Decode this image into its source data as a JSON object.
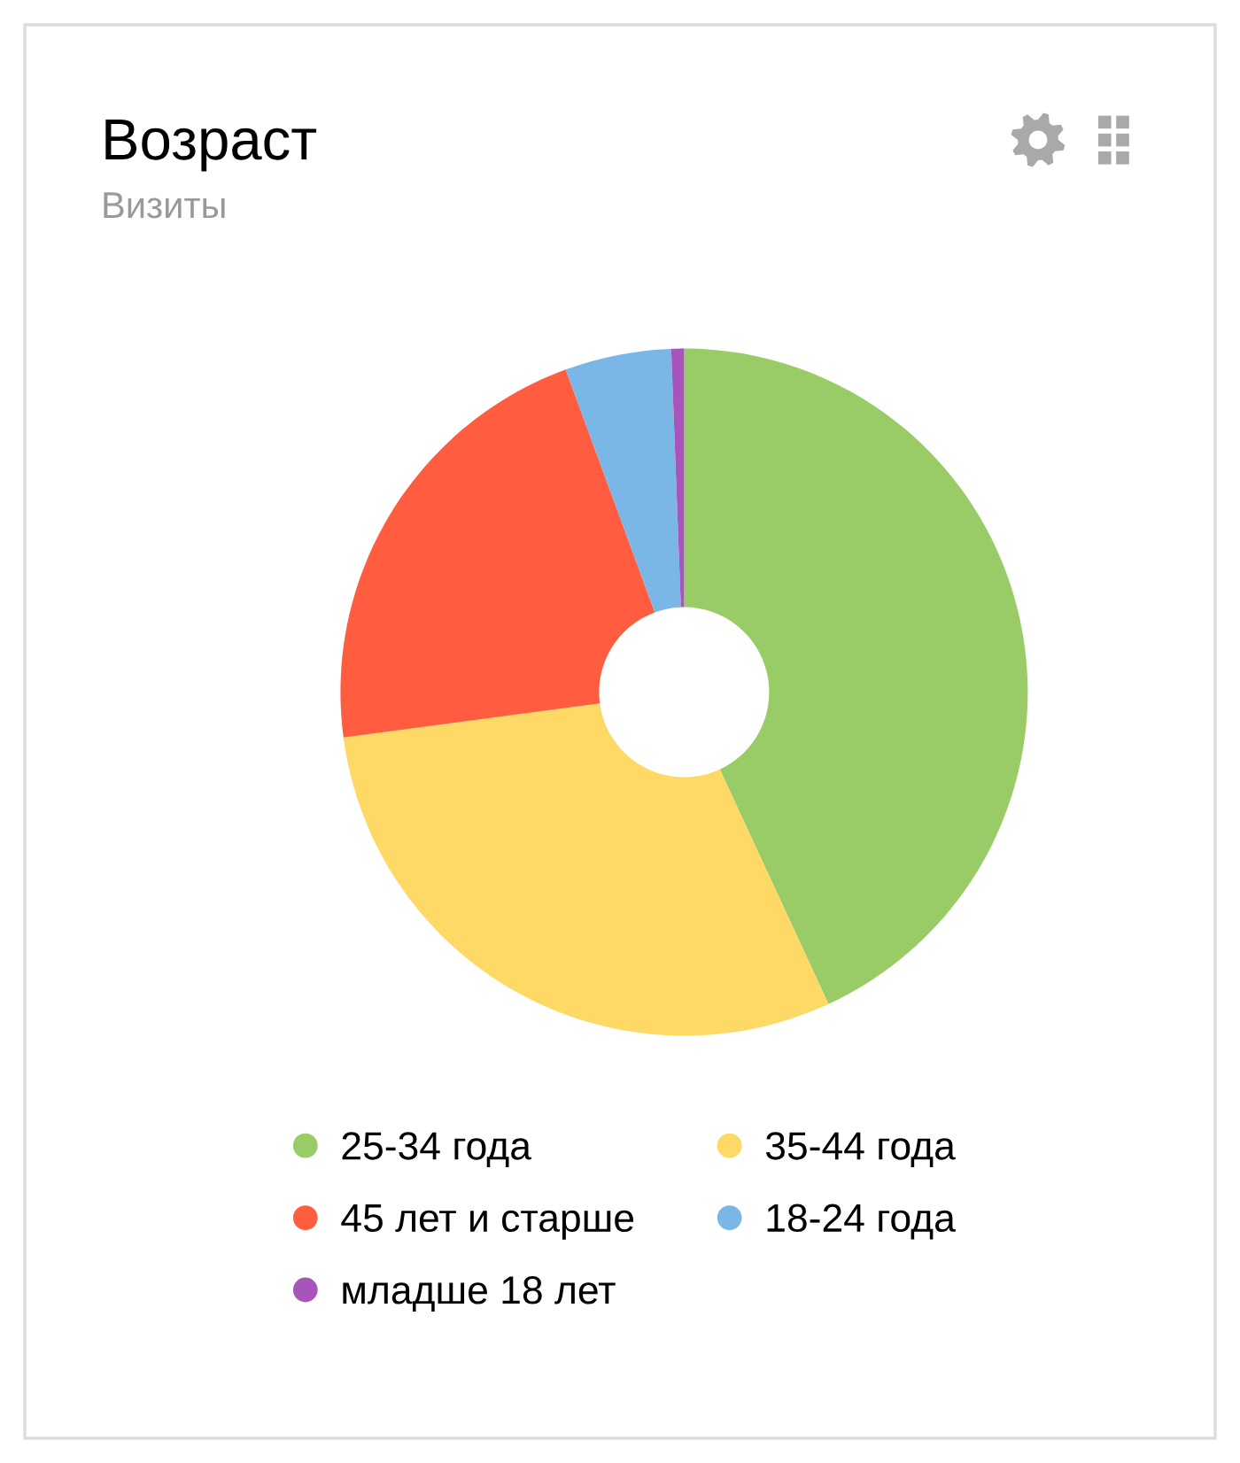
{
  "chart_data": {
    "type": "donut",
    "title": "Возраст",
    "subtitle": "Визиты",
    "categories": [
      "25-34 года",
      "35-44 года",
      "45 лет и старше",
      "18-24 года",
      "младше 18 лет"
    ],
    "values": [
      43.1,
      29.8,
      21.5,
      5.0,
      0.6
    ],
    "colors": [
      "#99cc66",
      "#ffd966",
      "#ff5c40",
      "#7ab6e6",
      "#a855bb"
    ],
    "legend": "bottom"
  }
}
